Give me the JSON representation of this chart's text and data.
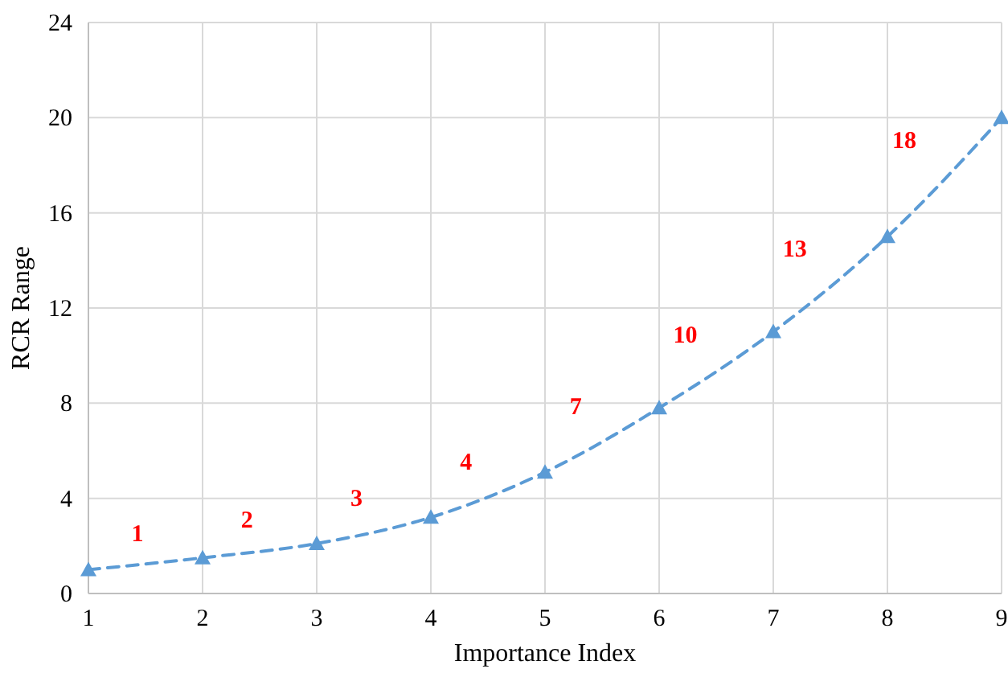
{
  "chart_data": {
    "type": "line",
    "xlabel": "Importance Index",
    "ylabel": "RCR Range",
    "x": [
      1,
      2,
      3,
      4,
      5,
      6,
      7,
      8,
      9
    ],
    "series": [
      {
        "color": "#5b9bd5",
        "values": [
          1,
          1.5,
          2.1,
          3.2,
          5.1,
          7.8,
          11,
          15,
          20
        ]
      }
    ],
    "xlim": [
      1,
      9
    ],
    "xticks": [
      1,
      2,
      3,
      4,
      5,
      6,
      7,
      8,
      9
    ],
    "ylim": [
      0,
      24
    ],
    "yticks": [
      0,
      4,
      8,
      12,
      16,
      20,
      24
    ],
    "grid": true,
    "marker": "triangle",
    "line_style": "dashed",
    "annotations": [
      "1",
      "2",
      "3",
      "4",
      "7",
      "10",
      "13",
      "18"
    ]
  }
}
